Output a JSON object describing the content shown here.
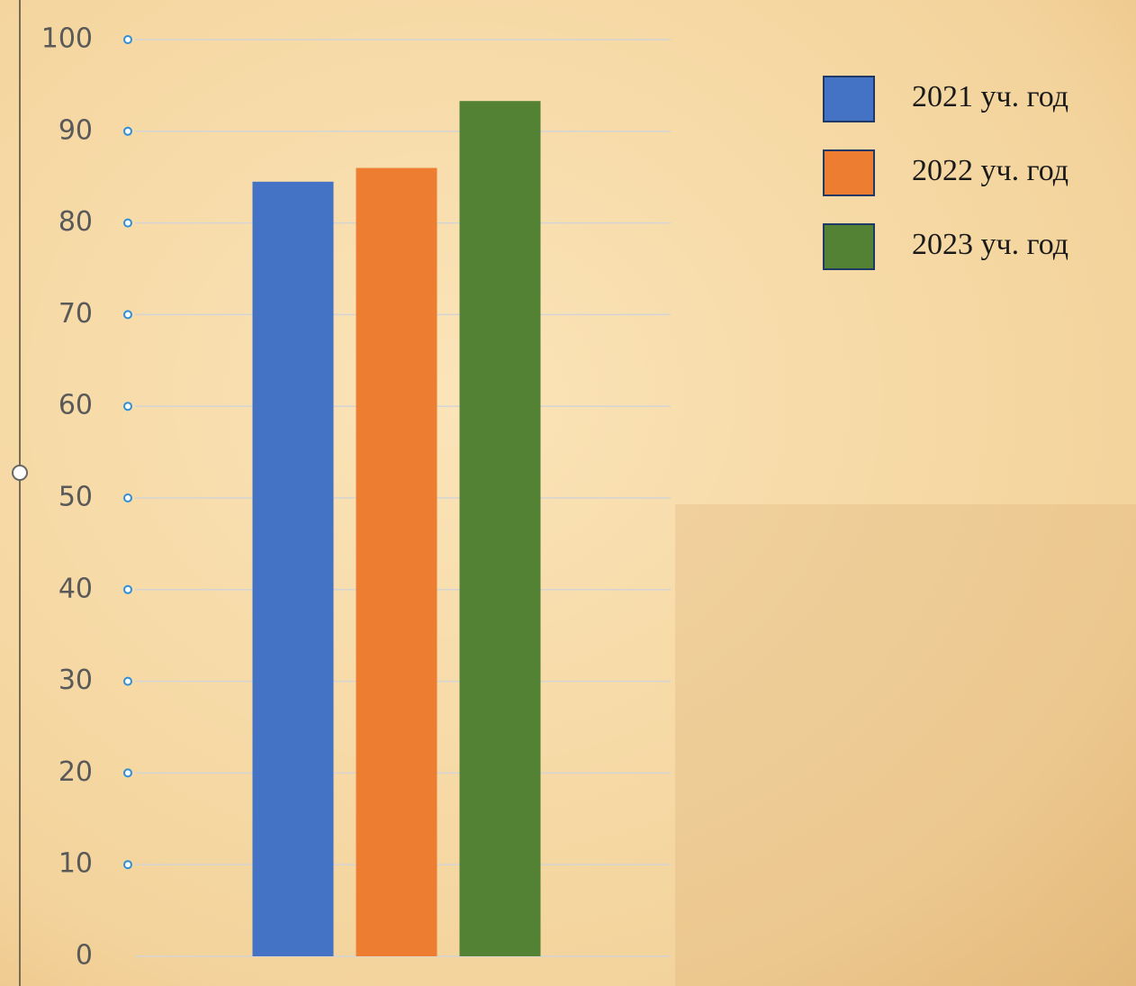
{
  "chart_data": {
    "type": "bar",
    "categories": [
      null
    ],
    "series": [
      {
        "name": "2021 уч. год",
        "color": "#4472c4",
        "values": [
          84.5
        ]
      },
      {
        "name": "2022 уч. год",
        "color": "#ed7d31",
        "values": [
          86
        ]
      },
      {
        "name": "2023 уч. год",
        "color": "#548235",
        "values": [
          93.3
        ]
      }
    ],
    "ylim": [
      0,
      100
    ],
    "yticks": [
      0,
      10,
      20,
      30,
      40,
      50,
      60,
      70,
      80,
      90,
      100
    ],
    "grid": true,
    "legend": "right"
  }
}
